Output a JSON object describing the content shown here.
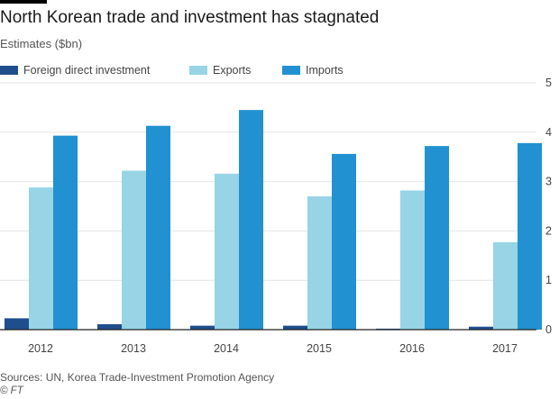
{
  "header": {
    "title": "North Korean trade and investment has stagnated",
    "subtitle": "Estimates ($bn)"
  },
  "legend": {
    "items": [
      {
        "label": "Foreign direct investment",
        "color": "#1f4e8c"
      },
      {
        "label": "Exports",
        "color": "#96d4e6"
      },
      {
        "label": "Imports",
        "color": "#2191d2"
      }
    ]
  },
  "footer": {
    "source": "Sources: UN, Korea Trade-Investment Promotion Agency",
    "credit": "© FT"
  },
  "chart_data": {
    "type": "bar",
    "title": "North Korean trade and investment has stagnated",
    "subtitle": "Estimates ($bn)",
    "categories": [
      "2012",
      "2013",
      "2014",
      "2015",
      "2016",
      "2017"
    ],
    "series": [
      {
        "name": "Foreign direct investment",
        "color": "#1f4e8c",
        "values": [
          0.23,
          0.11,
          0.08,
          0.08,
          0.02,
          0.06
        ]
      },
      {
        "name": "Exports",
        "color": "#96d4e6",
        "values": [
          2.88,
          3.22,
          3.16,
          2.7,
          2.82,
          1.77
        ]
      },
      {
        "name": "Imports",
        "color": "#2191d2",
        "values": [
          3.93,
          4.13,
          4.45,
          3.56,
          3.72,
          3.78
        ]
      }
    ],
    "ylim": [
      0,
      5
    ],
    "yticks": [
      0,
      1,
      2,
      3,
      4,
      5
    ],
    "ytick_position": "right",
    "grid": true,
    "legend_position": "top-left"
  }
}
